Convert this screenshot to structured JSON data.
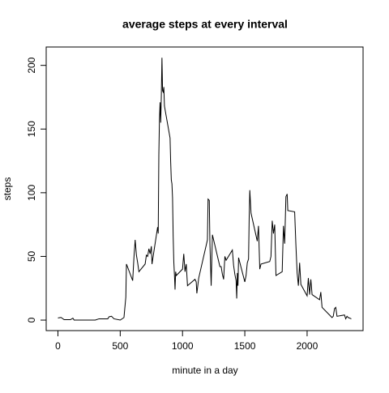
{
  "chart_data": {
    "type": "line",
    "title": "average steps at every interval",
    "xlabel": "minute in a day",
    "ylabel": "steps",
    "color": "#000000",
    "x": [
      0,
      25,
      50,
      100,
      120,
      130,
      200,
      300,
      330,
      400,
      410,
      430,
      450,
      500,
      530,
      545,
      550,
      600,
      610,
      620,
      630,
      640,
      650,
      700,
      710,
      720,
      730,
      740,
      750,
      755,
      800,
      805,
      810,
      815,
      820,
      825,
      830,
      835,
      840,
      845,
      850,
      855,
      900,
      905,
      910,
      915,
      920,
      925,
      930,
      935,
      940,
      945,
      950,
      1000,
      1010,
      1020,
      1030,
      1040,
      1100,
      1110,
      1115,
      1130,
      1200,
      1205,
      1215,
      1220,
      1230,
      1240,
      1300,
      1310,
      1320,
      1330,
      1340,
      1350,
      1400,
      1410,
      1420,
      1430,
      1435,
      1440,
      1445,
      1450,
      1500,
      1510,
      1520,
      1530,
      1535,
      1540,
      1550,
      1600,
      1610,
      1620,
      1630,
      1700,
      1710,
      1720,
      1730,
      1740,
      1750,
      1800,
      1810,
      1820,
      1830,
      1840,
      1845,
      1900,
      1910,
      1920,
      1930,
      1940,
      1950,
      2000,
      2010,
      2020,
      2030,
      2040,
      2100,
      2110,
      2120,
      2200,
      2210,
      2220,
      2230,
      2240,
      2300,
      2310,
      2320,
      2330,
      2355
    ],
    "values": [
      1.7,
      2.1,
      0.3,
      0.3,
      1.5,
      0,
      0,
      0,
      1,
      1,
      2.6,
      3,
      1,
      0,
      2,
      18,
      44,
      31,
      49,
      63,
      51,
      45,
      38,
      44,
      51,
      50,
      56,
      52,
      58,
      44,
      73,
      68,
      130,
      158,
      171,
      155,
      177,
      206,
      180,
      179,
      183,
      168,
      143,
      124,
      110,
      107,
      96,
      66,
      46,
      36,
      24,
      38,
      35,
      40,
      52,
      38,
      44,
      27,
      32,
      30,
      21,
      33,
      63,
      95,
      94,
      60,
      27,
      67,
      42,
      42,
      36,
      32,
      50,
      47,
      55,
      43,
      36,
      31,
      17,
      37,
      27,
      49,
      30,
      35,
      45,
      48,
      80,
      102,
      84,
      62,
      74,
      40,
      44,
      46,
      50,
      78,
      68,
      75,
      35,
      38,
      74,
      60,
      97,
      99,
      86,
      85,
      59,
      37,
      27,
      45,
      28,
      19,
      33,
      20,
      32,
      20,
      16,
      22,
      10,
      2,
      3,
      9,
      10,
      3,
      4,
      1,
      3,
      2,
      1
    ],
    "xlim": [
      -94.2,
      2449.2
    ],
    "ylim": [
      -8.25,
      214.42
    ],
    "xticks": [
      0,
      500,
      1000,
      1500,
      2000
    ],
    "yticks": [
      0,
      50,
      100,
      150,
      200
    ]
  }
}
